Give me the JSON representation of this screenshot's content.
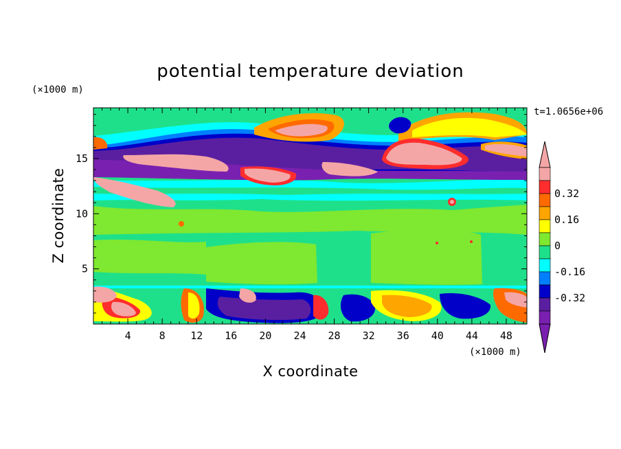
{
  "chart_data": {
    "type": "heatmap",
    "title": "potential temperature deviation",
    "xlabel": "X coordinate",
    "ylabel": "Z coordinate",
    "x_unit": "(×1000 m)",
    "y_unit": "(×1000 m)",
    "time_label": "t=1.0656e+06",
    "xlim": [
      0,
      50.4
    ],
    "ylim": [
      0,
      19.6
    ],
    "x_ticks": [
      4,
      8,
      12,
      16,
      20,
      24,
      28,
      32,
      36,
      40,
      44,
      48
    ],
    "y_ticks": [
      5,
      10,
      15
    ],
    "colorbar": {
      "levels": [
        -0.4,
        -0.32,
        -0.24,
        -0.16,
        -0.08,
        0,
        0.08,
        0.16,
        0.24,
        0.32,
        0.4
      ],
      "labels": [
        "0.32",
        "0.16",
        "0",
        "-0.16",
        "-0.32"
      ],
      "label_values": [
        0.32,
        0.16,
        0,
        -0.16,
        -0.32
      ],
      "colors_high_to_low": [
        "#f4a6a6",
        "#ff2d2d",
        "#ff6a00",
        "#ffa500",
        "#ffff00",
        "#7fe830",
        "#1fe08a",
        "#00ffff",
        "#0080ff",
        "#0000c8",
        "#5a1fa0",
        "#7a20b0"
      ],
      "extend": "both"
    },
    "grid": false
  }
}
